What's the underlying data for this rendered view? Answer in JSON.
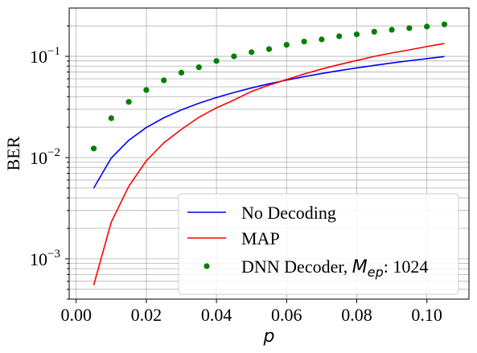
{
  "chart_data": {
    "type": "line",
    "title": "",
    "xlabel": "p",
    "ylabel": "BER",
    "xlim": [
      -0.002,
      0.112
    ],
    "ylim": [
      0.0004,
      0.3
    ],
    "y_scale": "log",
    "grid": true,
    "legend_position": "lower-right",
    "x_ticks": [
      0.0,
      0.02,
      0.04,
      0.06,
      0.08,
      0.1
    ],
    "x_tick_labels": [
      "0.00",
      "0.02",
      "0.04",
      "0.06",
      "0.08",
      "0.10"
    ],
    "y_tick_labels": [
      {
        "value": 0.1,
        "base": "10",
        "exp": "−1"
      },
      {
        "value": 0.01,
        "base": "10",
        "exp": "−2"
      },
      {
        "value": 0.001,
        "base": "10",
        "exp": "−3"
      }
    ],
    "series": [
      {
        "name": "No Decoding",
        "kind": "line",
        "color": "#0000ff",
        "x": [
          0.005,
          0.01,
          0.015,
          0.02,
          0.025,
          0.03,
          0.035,
          0.04,
          0.045,
          0.05,
          0.055,
          0.06,
          0.065,
          0.07,
          0.075,
          0.08,
          0.085,
          0.09,
          0.095,
          0.1,
          0.105
        ],
        "y": [
          0.005,
          0.0099,
          0.0148,
          0.0198,
          0.0247,
          0.0296,
          0.0344,
          0.0392,
          0.044,
          0.0488,
          0.0536,
          0.0583,
          0.063,
          0.0677,
          0.0723,
          0.0769,
          0.0815,
          0.086,
          0.0905,
          0.095,
          0.0995
        ]
      },
      {
        "name": "MAP",
        "kind": "line",
        "color": "#ff0000",
        "x": [
          0.005,
          0.01,
          0.015,
          0.02,
          0.025,
          0.03,
          0.035,
          0.04,
          0.045,
          0.05,
          0.055,
          0.06,
          0.065,
          0.07,
          0.075,
          0.08,
          0.085,
          0.09,
          0.095,
          0.1,
          0.105
        ],
        "y": [
          0.00055,
          0.0023,
          0.0052,
          0.0093,
          0.014,
          0.019,
          0.025,
          0.031,
          0.037,
          0.045,
          0.052,
          0.059,
          0.067,
          0.075,
          0.083,
          0.091,
          0.1,
          0.108,
          0.116,
          0.125,
          0.134
        ]
      },
      {
        "name": "DNN Decoder, ",
        "name_math": "M",
        "name_math_sub": "ep",
        "name_suffix": ": 1024",
        "kind": "scatter",
        "color": "#008000",
        "x": [
          0.005,
          0.01,
          0.015,
          0.02,
          0.025,
          0.03,
          0.035,
          0.04,
          0.045,
          0.05,
          0.055,
          0.06,
          0.065,
          0.07,
          0.075,
          0.08,
          0.085,
          0.09,
          0.095,
          0.1,
          0.105
        ],
        "y": [
          0.0123,
          0.0245,
          0.0355,
          0.0465,
          0.058,
          0.069,
          0.078,
          0.09,
          0.1,
          0.11,
          0.118,
          0.13,
          0.14,
          0.147,
          0.158,
          0.165,
          0.175,
          0.183,
          0.19,
          0.197,
          0.207
        ]
      }
    ]
  }
}
